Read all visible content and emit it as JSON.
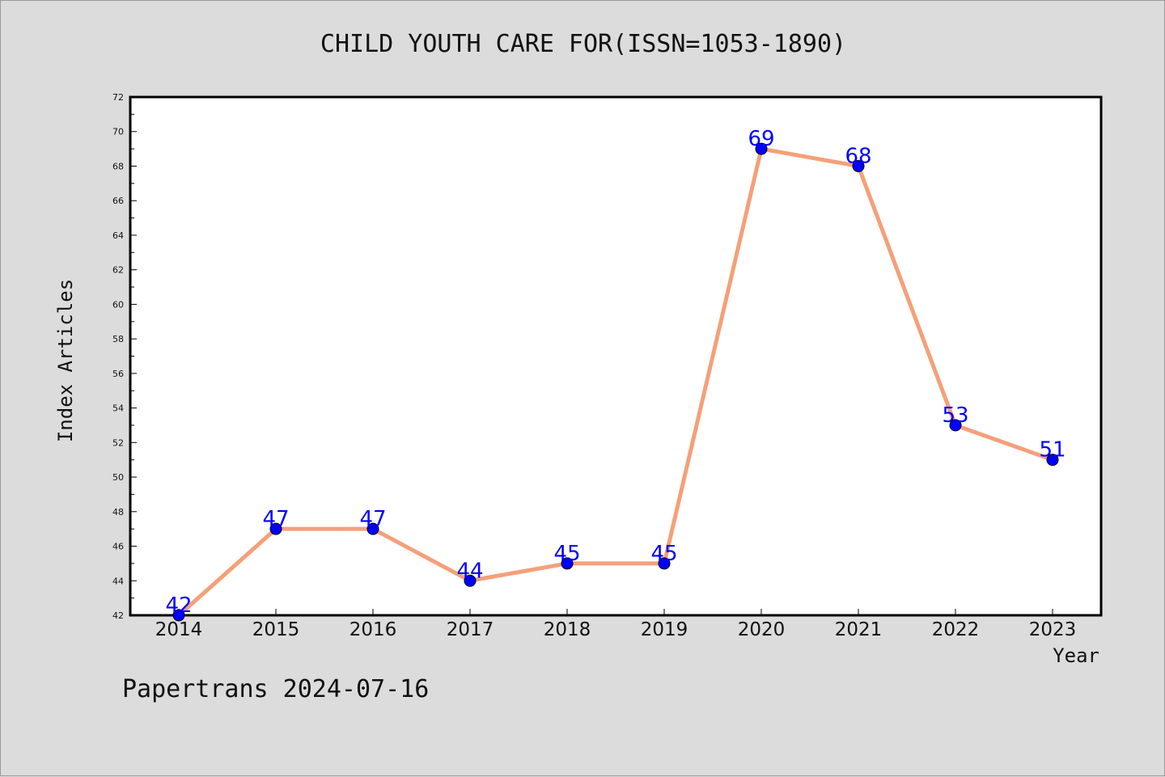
{
  "title": "CHILD YOUTH CARE FOR(ISSN=1053-1890)",
  "footer": "Papertrans 2024-07-16",
  "colors": {
    "line": "#f4a07a",
    "marker": "#0000ff",
    "data_label": "#0000ff",
    "background": "#dcdcdc",
    "plot_background": "#ffffff"
  },
  "chart_data": {
    "type": "line",
    "title": "CHILD YOUTH CARE FOR(ISSN=1053-1890)",
    "xlabel": "Year",
    "ylabel": "Index Articles",
    "categories": [
      "2014",
      "2015",
      "2016",
      "2017",
      "2018",
      "2019",
      "2020",
      "2021",
      "2022",
      "2023"
    ],
    "values": [
      42,
      47,
      47,
      44,
      45,
      45,
      69,
      68,
      53,
      51
    ],
    "ylim": [
      42,
      72
    ],
    "yticks": [
      42,
      44,
      46,
      48,
      50,
      52,
      54,
      56,
      58,
      60,
      62,
      64,
      66,
      68,
      70,
      72
    ],
    "grid": false,
    "legend": "none",
    "data_labels": true
  }
}
